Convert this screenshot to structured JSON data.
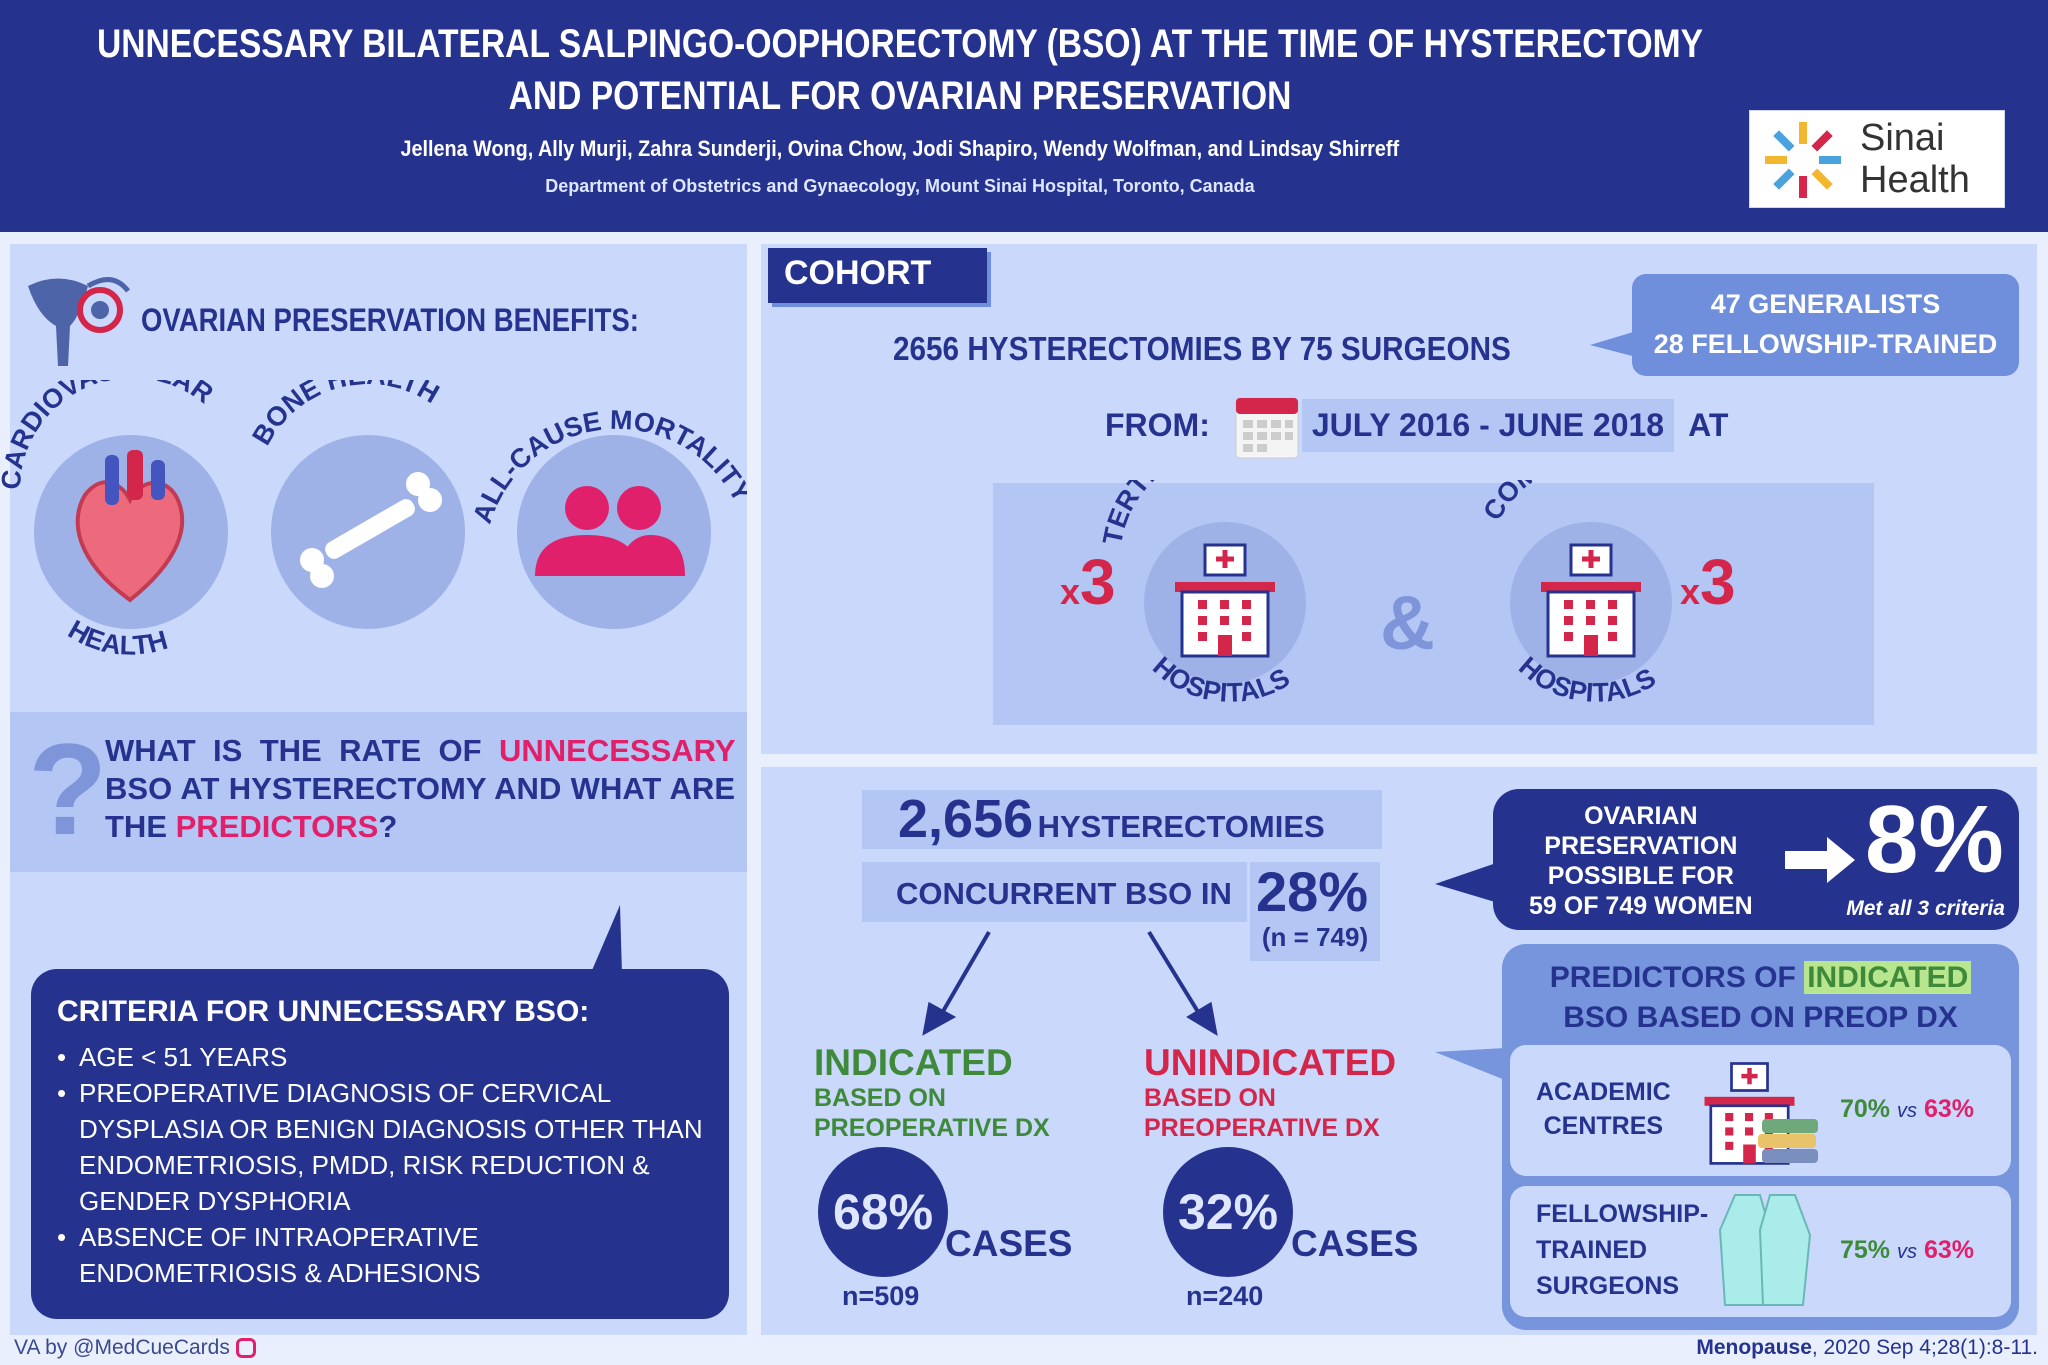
{
  "header": {
    "title": "UNNECESSARY BILATERAL SALPINGO-OOPHORECTOMY (BSO) AT THE TIME OF HYSTERECTOMY AND POTENTIAL FOR OVARIAN PRESERVATION",
    "authors": "Jellena Wong, Ally Murji, Zahra Sunderji, Ovina Chow, Jodi Shapiro, Wendy Wolfman, and Lindsay Shirreff",
    "department": "Department of Obstetrics and Gynaecology, Mount Sinai Hospital, Toronto, Canada",
    "logo_line1": "Sinai",
    "logo_line2": "Health"
  },
  "benefits": {
    "heading": "OVARIAN PRESERVATION BENEFITS:",
    "items": [
      {
        "label_top": "CARDIOVASCULAR",
        "label_bottom": "HEALTH",
        "icon": "heart-icon"
      },
      {
        "label_top": "BONE HEALTH",
        "icon": "bone-icon"
      },
      {
        "label_top": "ALL-CAUSE MORTALITY",
        "icon": "people-icon"
      }
    ]
  },
  "question": {
    "mark": "?",
    "part1": "WHAT IS THE RATE OF ",
    "highlight1": "UNNECESSARY",
    "part2": " BSO AT HYSTERECTOMY AND WHAT ARE THE ",
    "highlight2": "PREDICTORS",
    "part3": "?"
  },
  "criteria": {
    "title": "CRITERIA FOR UNNECESSARY BSO:",
    "items": [
      "AGE < 51 YEARS",
      "PREOPERATIVE DIAGNOSIS OF CERVICAL DYSPLASIA OR BENIGN DIAGNOSIS OTHER THAN ENDOMETRIOSIS, PMDD, RISK REDUCTION & GENDER DYSPHORIA",
      "ABSENCE OF INTRAOPERATIVE ENDOMETRIOSIS & ADHESIONS"
    ]
  },
  "cohort": {
    "tab": "COHORT",
    "summary": "2656 HYSTERECTOMIES BY 75 SURGEONS",
    "surgeons_line1": "47 GENERALISTS",
    "surgeons_line2": "28 FELLOWSHIP-TRAINED",
    "from": "FROM:",
    "dates": "JULY 2016 - JUNE 2018",
    "at": "AT",
    "tertiary": {
      "multiplier": "x",
      "count": "3",
      "label_top": "TERTIARY CARE",
      "label_bottom": "HOSPITALS"
    },
    "ampersand": "&",
    "community": {
      "multiplier": "x",
      "count": "3",
      "label_top": "COMMUNITY",
      "label_bottom": "HOSPITALS"
    }
  },
  "results": {
    "total_number": "2,656",
    "total_label": "HYSTERECTOMIES",
    "concurrent_label": "CONCURRENT BSO IN",
    "concurrent_pct": "28%",
    "concurrent_n": "(n = 749)",
    "indicated": {
      "title": "INDICATED",
      "sub1": "BASED ON",
      "sub2": "PREOPERATIVE DX",
      "pct": "68%",
      "cases": "CASES",
      "n": "n=509"
    },
    "unindicated": {
      "title": "UNINDICATED",
      "sub1": "BASED ON",
      "sub2": "PREOPERATIVE DX",
      "pct": "32%",
      "cases": "CASES",
      "n": "n=240"
    },
    "preservation": {
      "line1": "OVARIAN",
      "line2": "PRESERVATION",
      "line3": "POSSIBLE FOR",
      "line4": "59 OF 749 WOMEN",
      "pct": "8%",
      "note": "Met all 3 criteria"
    },
    "predictors": {
      "title_pre": "PREDICTORS OF ",
      "title_highlight": "INDICATED",
      "title_post": "BSO BASED ON PREOP DX",
      "rows": [
        {
          "label1": "ACADEMIC",
          "label2": "CENTRES",
          "label3": "",
          "a": "70%",
          "vs": "vs",
          "b": "63%"
        },
        {
          "label1": "FELLOWSHIP-",
          "label2": "TRAINED",
          "label3": "SURGEONS",
          "a": "75%",
          "vs": "vs",
          "b": "63%"
        }
      ]
    }
  },
  "footer": {
    "credit": "VA by @MedCueCards",
    "journal": "Menopause",
    "citation": ", 2020 Sep 4;28(1):8-11."
  },
  "colors": {
    "navy": "#25338f",
    "pink": "#e0206a",
    "green": "#3f8a3a",
    "red": "#d3264a",
    "panel": "#c9d8fb"
  }
}
